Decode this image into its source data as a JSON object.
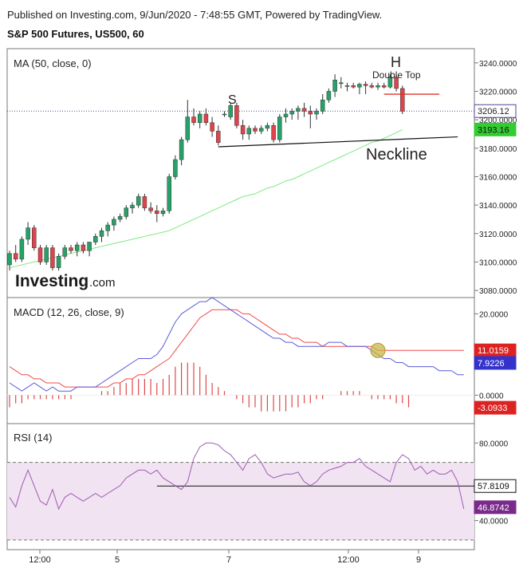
{
  "header": {
    "published": "Published on Investing.com, 9/Jun/2020 - 7:48:55 GMT, Powered by TradingView.",
    "title": "S&P 500 Futures, US500, 60"
  },
  "colors": {
    "up": "#26a269",
    "down": "#e0434b",
    "ma": "#7ee87e",
    "macd_line": "#5b5bdc",
    "signal_line": "#f04a4a",
    "histogram": "#e04848",
    "rsi_line": "#a05ab4",
    "rsi_band": "#f1e3f1",
    "price_badge": "#ffffff",
    "ma_badge": "#33cc33",
    "signal_badge": "#dd2222",
    "macd_badge": "#3333cc",
    "rsi_badge": "#7a2a8a"
  },
  "chart_data": [
    {
      "type": "candlestick",
      "panel": "price",
      "indicator_label": "MA (50, close, 0)",
      "ylim": [
        3075,
        3250
      ],
      "y_ticks": [
        "3240.0000",
        "3220.0000",
        "3200.0000",
        "3180.0000",
        "3160.0000",
        "3140.0000",
        "3120.0000",
        "3100.0000",
        "3080.0000"
      ],
      "y_tick_values": [
        3240,
        3220,
        3200,
        3180,
        3160,
        3140,
        3120,
        3100,
        3080
      ],
      "current_price": 3206.12,
      "current_price_label": "3206.12",
      "ma_value_label": "3193.16",
      "candles": [
        {
          "o": 3098,
          "h": 3108,
          "l": 3094,
          "c": 3106
        },
        {
          "o": 3106,
          "h": 3112,
          "l": 3100,
          "c": 3102
        },
        {
          "o": 3102,
          "h": 3118,
          "l": 3100,
          "c": 3116
        },
        {
          "o": 3116,
          "h": 3128,
          "l": 3112,
          "c": 3124
        },
        {
          "o": 3124,
          "h": 3126,
          "l": 3108,
          "c": 3110
        },
        {
          "o": 3110,
          "h": 3112,
          "l": 3098,
          "c": 3100
        },
        {
          "o": 3100,
          "h": 3112,
          "l": 3098,
          "c": 3110
        },
        {
          "o": 3110,
          "h": 3112,
          "l": 3094,
          "c": 3096
        },
        {
          "o": 3096,
          "h": 3106,
          "l": 3094,
          "c": 3104
        },
        {
          "o": 3104,
          "h": 3112,
          "l": 3102,
          "c": 3110
        },
        {
          "o": 3110,
          "h": 3112,
          "l": 3106,
          "c": 3108
        },
        {
          "o": 3108,
          "h": 3114,
          "l": 3104,
          "c": 3112
        },
        {
          "o": 3112,
          "h": 3114,
          "l": 3106,
          "c": 3108
        },
        {
          "o": 3108,
          "h": 3114,
          "l": 3104,
          "c": 3114
        },
        {
          "o": 3114,
          "h": 3120,
          "l": 3112,
          "c": 3118
        },
        {
          "o": 3118,
          "h": 3124,
          "l": 3114,
          "c": 3122
        },
        {
          "o": 3122,
          "h": 3128,
          "l": 3118,
          "c": 3126
        },
        {
          "o": 3126,
          "h": 3132,
          "l": 3122,
          "c": 3130
        },
        {
          "o": 3130,
          "h": 3134,
          "l": 3128,
          "c": 3132
        },
        {
          "o": 3132,
          "h": 3140,
          "l": 3130,
          "c": 3138
        },
        {
          "o": 3138,
          "h": 3142,
          "l": 3134,
          "c": 3140
        },
        {
          "o": 3140,
          "h": 3148,
          "l": 3138,
          "c": 3146
        },
        {
          "o": 3146,
          "h": 3148,
          "l": 3136,
          "c": 3138
        },
        {
          "o": 3138,
          "h": 3142,
          "l": 3134,
          "c": 3136
        },
        {
          "o": 3136,
          "h": 3140,
          "l": 3128,
          "c": 3134
        },
        {
          "o": 3134,
          "h": 3138,
          "l": 3132,
          "c": 3136
        },
        {
          "o": 3136,
          "h": 3162,
          "l": 3134,
          "c": 3160
        },
        {
          "o": 3160,
          "h": 3175,
          "l": 3158,
          "c": 3172
        },
        {
          "o": 3172,
          "h": 3188,
          "l": 3168,
          "c": 3186
        },
        {
          "o": 3186,
          "h": 3214,
          "l": 3184,
          "c": 3202
        },
        {
          "o": 3202,
          "h": 3208,
          "l": 3196,
          "c": 3198
        },
        {
          "o": 3198,
          "h": 3206,
          "l": 3194,
          "c": 3204
        },
        {
          "o": 3204,
          "h": 3208,
          "l": 3196,
          "c": 3198
        },
        {
          "o": 3198,
          "h": 3202,
          "l": 3188,
          "c": 3192
        },
        {
          "o": 3192,
          "h": 3196,
          "l": 3182,
          "c": 3184
        },
        {
          "o": 3204,
          "h": 3206,
          "l": 3202,
          "c": 3204
        },
        {
          "o": 3202,
          "h": 3212,
          "l": 3200,
          "c": 3210
        },
        {
          "o": 3210,
          "h": 3212,
          "l": 3194,
          "c": 3196
        },
        {
          "o": 3196,
          "h": 3200,
          "l": 3186,
          "c": 3190
        },
        {
          "o": 3190,
          "h": 3196,
          "l": 3186,
          "c": 3194
        },
        {
          "o": 3194,
          "h": 3196,
          "l": 3190,
          "c": 3192
        },
        {
          "o": 3192,
          "h": 3196,
          "l": 3190,
          "c": 3194
        },
        {
          "o": 3194,
          "h": 3198,
          "l": 3192,
          "c": 3196
        },
        {
          "o": 3196,
          "h": 3198,
          "l": 3184,
          "c": 3186
        },
        {
          "o": 3186,
          "h": 3204,
          "l": 3184,
          "c": 3202
        },
        {
          "o": 3202,
          "h": 3208,
          "l": 3198,
          "c": 3204
        },
        {
          "o": 3204,
          "h": 3208,
          "l": 3200,
          "c": 3206
        },
        {
          "o": 3206,
          "h": 3210,
          "l": 3200,
          "c": 3208
        },
        {
          "o": 3208,
          "h": 3212,
          "l": 3202,
          "c": 3206
        },
        {
          "o": 3206,
          "h": 3210,
          "l": 3194,
          "c": 3204
        },
        {
          "o": 3204,
          "h": 3208,
          "l": 3200,
          "c": 3206
        },
        {
          "o": 3206,
          "h": 3218,
          "l": 3204,
          "c": 3214
        },
        {
          "o": 3214,
          "h": 3222,
          "l": 3212,
          "c": 3220
        },
        {
          "o": 3220,
          "h": 3232,
          "l": 3216,
          "c": 3228
        },
        {
          "o": 3226,
          "h": 3230,
          "l": 3222,
          "c": 3226
        },
        {
          "o": 3224,
          "h": 3226,
          "l": 3220,
          "c": 3224
        },
        {
          "o": 3224,
          "h": 3226,
          "l": 3222,
          "c": 3223
        },
        {
          "o": 3223,
          "h": 3226,
          "l": 3218,
          "c": 3225
        },
        {
          "o": 3225,
          "h": 3227,
          "l": 3218,
          "c": 3224
        },
        {
          "o": 3224,
          "h": 3226,
          "l": 3222,
          "c": 3223
        },
        {
          "o": 3223,
          "h": 3226,
          "l": 3221,
          "c": 3224
        },
        {
          "o": 3224,
          "h": 3226,
          "l": 3222,
          "c": 3223
        },
        {
          "o": 3223,
          "h": 3232,
          "l": 3222,
          "c": 3230
        },
        {
          "o": 3230,
          "h": 3232,
          "l": 3220,
          "c": 3222
        },
        {
          "o": 3222,
          "h": 3224,
          "l": 3204,
          "c": 3206
        }
      ],
      "ma_values": [
        3096,
        3097,
        3098,
        3099,
        3100,
        3101,
        3102,
        3103,
        3104,
        3105,
        3106,
        3107,
        3108,
        3109,
        3110,
        3111,
        3112,
        3113,
        3114,
        3115,
        3116,
        3117,
        3118,
        3119,
        3120,
        3121,
        3122,
        3124,
        3126,
        3128,
        3130,
        3132,
        3134,
        3136,
        3138,
        3140,
        3142,
        3144,
        3146,
        3147,
        3148,
        3150,
        3152,
        3153,
        3155,
        3157,
        3158,
        3160,
        3162,
        3164,
        3166,
        3168,
        3170,
        3172,
        3174,
        3176,
        3178,
        3180,
        3182,
        3184,
        3185,
        3187,
        3189,
        3191,
        3193
      ],
      "annotations": {
        "s_label": "S",
        "h_label": "H",
        "double_top_label": "Double Top",
        "neckline_label": "Neckline",
        "neckline": {
          "start_index": 34,
          "start_value": 3181,
          "end_index": 73,
          "end_value": 3188
        },
        "double_top_line": {
          "start_index": 61,
          "end_index": 70,
          "value": 3218
        }
      }
    },
    {
      "type": "line",
      "panel": "macd",
      "indicator_label": "MACD (12, 26, close, 9)",
      "ylim": [
        -7,
        24
      ],
      "y_ticks": [
        "20.0000",
        "0.0000"
      ],
      "y_tick_values": [
        20,
        0
      ],
      "signal_label": "11.0159",
      "macd_label": "7.9226",
      "histogram_label": "-3.0933",
      "macd_values": [
        3,
        2,
        1,
        2,
        3,
        2,
        1,
        2,
        1,
        1,
        1,
        2,
        2,
        2,
        2,
        3,
        4,
        5,
        6,
        7,
        8,
        9,
        9,
        9,
        10,
        12,
        15,
        18,
        20,
        21,
        22,
        23,
        23,
        24,
        23,
        22,
        21,
        20,
        19,
        18,
        17,
        16,
        15,
        14,
        14,
        13,
        13,
        12,
        12,
        12,
        12,
        12,
        13,
        13,
        13,
        12,
        12,
        12,
        12,
        11,
        10,
        9,
        9,
        8,
        8,
        7,
        7,
        7,
        7,
        7,
        6,
        6,
        6,
        5,
        5
      ],
      "signal_values": [
        7,
        6,
        5,
        5,
        4,
        4,
        3,
        3,
        3,
        2,
        2,
        2,
        2,
        2,
        2,
        2,
        2,
        3,
        3,
        4,
        4,
        5,
        5,
        6,
        7,
        8,
        9,
        11,
        13,
        15,
        17,
        19,
        20,
        21,
        21,
        21,
        21,
        21,
        20,
        20,
        19,
        18,
        17,
        16,
        15,
        15,
        14,
        14,
        13,
        13,
        13,
        12,
        12,
        12,
        12,
        12,
        12,
        12,
        12,
        12,
        11,
        11,
        11,
        11,
        11,
        11,
        11,
        11,
        11,
        11,
        11,
        11,
        11,
        11,
        11
      ],
      "histogram_values": [
        -3,
        -2,
        -2,
        -1,
        -1,
        -1,
        -1,
        -1,
        -1,
        -1,
        -1,
        0,
        0,
        0,
        0,
        1,
        1,
        2,
        3,
        3,
        4,
        4,
        4,
        4,
        3,
        4,
        5,
        7,
        8,
        8,
        8,
        7,
        5,
        3,
        2,
        1,
        0,
        -1,
        -2,
        -3,
        -3,
        -4,
        -4,
        -4,
        -4,
        -4,
        -3,
        -3,
        -2,
        -2,
        -1,
        -1,
        0,
        0,
        1,
        1,
        1,
        1,
        0,
        -1,
        -1,
        -1,
        -1,
        -2,
        -2,
        -3
      ],
      "crossover_index": 60
    },
    {
      "type": "line",
      "panel": "rsi",
      "indicator_label": "RSI (14)",
      "ylim": [
        25,
        90
      ],
      "y_ticks": [
        "80.0000",
        "60.0000",
        "40.0000"
      ],
      "y_tick_values": [
        80,
        60,
        40
      ],
      "band": [
        30,
        70
      ],
      "horizontal_line_value": 57.81,
      "horizontal_line_label": "57.8109",
      "rsi_label": "46.8742",
      "rsi_values": [
        52,
        47,
        58,
        66,
        58,
        50,
        48,
        56,
        46,
        52,
        54,
        52,
        50,
        52,
        54,
        52,
        54,
        56,
        58,
        62,
        64,
        66,
        66,
        64,
        66,
        62,
        60,
        58,
        56,
        60,
        72,
        78,
        80,
        80,
        79,
        76,
        74,
        70,
        66,
        72,
        74,
        70,
        64,
        62,
        63,
        64,
        64,
        65,
        60,
        58,
        60,
        64,
        66,
        67,
        68,
        70,
        70,
        72,
        68,
        66,
        64,
        62,
        60,
        70,
        74,
        72,
        66,
        68,
        64,
        66,
        64,
        64,
        66,
        60,
        46
      ]
    }
  ],
  "x_axis": {
    "ticks": [
      "12:00",
      "5",
      "7",
      "12:00",
      "9"
    ],
    "tick_positions": [
      50,
      147,
      287,
      437,
      525
    ]
  },
  "logo": {
    "brand": "Investing",
    "suffix": ".com"
  }
}
